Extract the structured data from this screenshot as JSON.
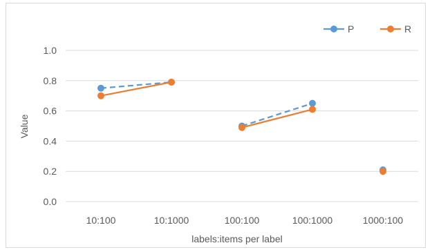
{
  "chart_data": {
    "type": "line",
    "title": "",
    "xlabel": "labels:items per label",
    "ylabel": "Value",
    "ylim": [
      0,
      1.0
    ],
    "yticks": [
      "0.0",
      "0.2",
      "0.4",
      "0.6",
      "0.8",
      "1.0"
    ],
    "categories": [
      "10:100",
      "10:1000",
      "100:100",
      "100:1000",
      "1000:100"
    ],
    "grid": true,
    "legend_position": "top-right",
    "series": [
      {
        "name": "P",
        "color": "#5b9bd5",
        "line_style": "dashed",
        "segments": [
          [
            0,
            1
          ],
          [
            2,
            3
          ]
        ],
        "values": [
          0.75,
          0.79,
          0.5,
          0.65,
          0.21
        ]
      },
      {
        "name": "R",
        "color": "#ed7d31",
        "line_style": "solid",
        "segments": [
          [
            0,
            1
          ],
          [
            2,
            3
          ]
        ],
        "values": [
          0.7,
          0.79,
          0.49,
          0.61,
          0.2
        ]
      }
    ]
  }
}
